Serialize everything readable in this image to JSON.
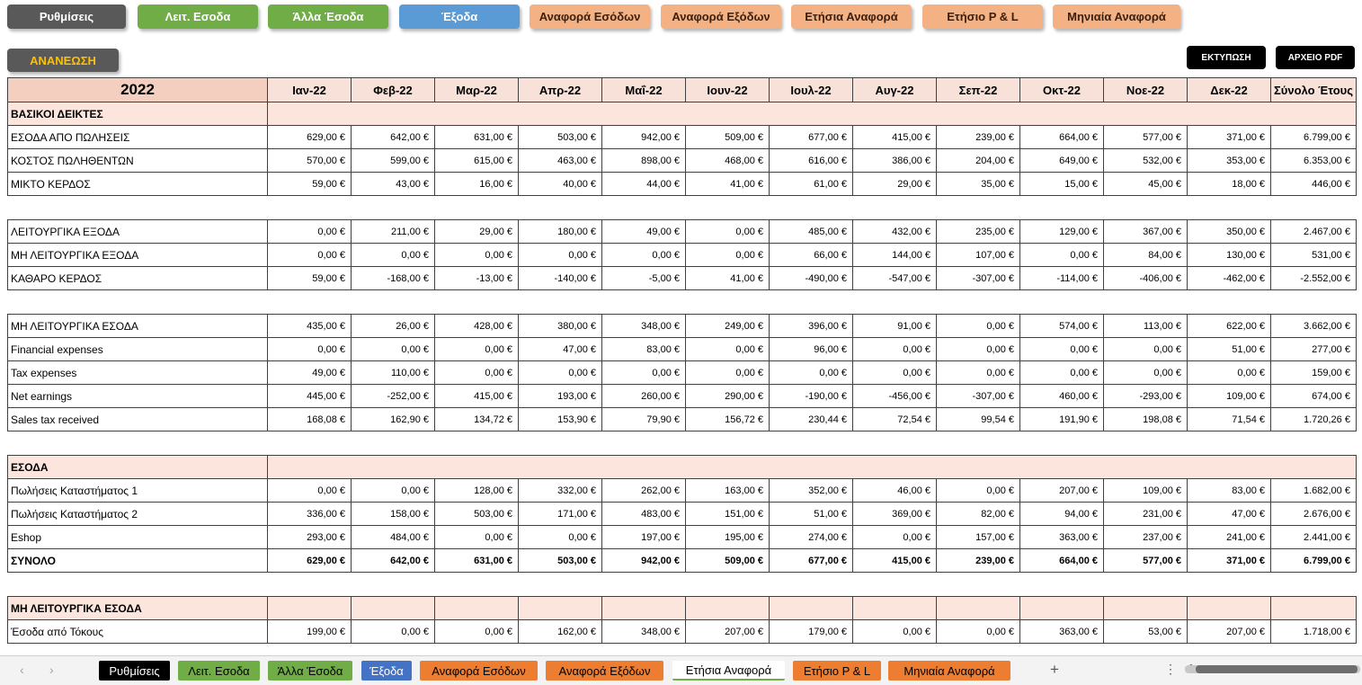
{
  "nav_buttons": [
    {
      "label": "Ρυθμίσεις",
      "color": "#595959"
    },
    {
      "label": "Λειτ. Εσοδα",
      "color": "#70ad47"
    },
    {
      "label": "Άλλα Έσοδα",
      "color": "#70ad47"
    },
    {
      "label": "Έξοδα",
      "color": "#5b9bd5"
    },
    {
      "label": "Αναφορά Εσόδων",
      "color": "#f4b183"
    },
    {
      "label": "Αναφορά Εξόδων",
      "color": "#f4b183"
    },
    {
      "label": "Ετήσια Αναφορά",
      "color": "#f4b183"
    },
    {
      "label": "Ετήσιο P & L",
      "color": "#f4b183"
    },
    {
      "label": "Μηνιαία Αναφορά",
      "color": "#f4b183"
    }
  ],
  "refresh_label": "ΑΝΑΝΕΩΣΗ",
  "print_label": "ΕΚΤΥΠΩΣΗ",
  "pdf_label": "ΑΡΧΕΙΟ PDF",
  "table": {
    "year": "2022",
    "months": [
      "Ιαν-22",
      "Φεβ-22",
      "Μαρ-22",
      "Απρ-22",
      "Μαΐ-22",
      "Ιουν-22",
      "Ιουλ-22",
      "Αυγ-22",
      "Σεπ-22",
      "Οκτ-22",
      "Νοε-22",
      "Δεκ-22"
    ],
    "total_header": "Σύνολο Έτους",
    "r_basic": {
      "label": "ΒΑΣΙΚΟΙ ΔΕΙΚΤΕΣ"
    },
    "r_sales": {
      "label": "ΕΣΟΔΑ ΑΠΟ ΠΩΛΗΣΕΙΣ",
      "values": [
        "629,00 €",
        "642,00 €",
        "631,00 €",
        "503,00 €",
        "942,00 €",
        "509,00 €",
        "677,00 €",
        "415,00 €",
        "239,00 €",
        "664,00 €",
        "577,00 €",
        "371,00 €",
        "6.799,00 €"
      ]
    },
    "r_cogs": {
      "label": "ΚΟΣΤΟΣ ΠΩΛΗΘΕΝΤΩΝ",
      "values": [
        "570,00 €",
        "599,00 €",
        "615,00 €",
        "463,00 €",
        "898,00 €",
        "468,00 €",
        "616,00 €",
        "386,00 €",
        "204,00 €",
        "649,00 €",
        "532,00 €",
        "353,00 €",
        "6.353,00 €"
      ]
    },
    "r_gross": {
      "label": "ΜΙΚΤΟ ΚΕΡΔΟΣ",
      "values": [
        "59,00 €",
        "43,00 €",
        "16,00 €",
        "40,00 €",
        "44,00 €",
        "41,00 €",
        "61,00 €",
        "29,00 €",
        "35,00 €",
        "15,00 €",
        "45,00 €",
        "18,00 €",
        "446,00 €"
      ]
    },
    "r_opex": {
      "label": "ΛΕΙΤΟΥΡΓΙΚΑ ΕΞΟΔΑ",
      "values": [
        "0,00 €",
        "211,00 €",
        "29,00 €",
        "180,00 €",
        "49,00 €",
        "0,00 €",
        "485,00 €",
        "432,00 €",
        "235,00 €",
        "129,00 €",
        "367,00 €",
        "350,00 €",
        "2.467,00 €"
      ]
    },
    "r_nonopex": {
      "label": "ΜΗ ΛΕΙΤΟΥΡΓΙΚΑ ΕΞΟΔΑ",
      "values": [
        "0,00 €",
        "0,00 €",
        "0,00 €",
        "0,00 €",
        "0,00 €",
        "0,00 €",
        "66,00 €",
        "144,00 €",
        "107,00 €",
        "0,00 €",
        "84,00 €",
        "130,00 €",
        "531,00 €"
      ]
    },
    "r_net": {
      "label": "ΚΑΘΑΡΟ ΚΕΡΔΟΣ",
      "values": [
        "59,00 €",
        "-168,00 €",
        "-13,00 €",
        "-140,00 €",
        "-5,00 €",
        "41,00 €",
        "-490,00 €",
        "-547,00 €",
        "-307,00 €",
        "-114,00 €",
        "-406,00 €",
        "-462,00 €",
        "-2.552,00 €"
      ]
    },
    "r_noninc": {
      "label": "ΜΗ ΛΕΙΤΟΥΡΓΙΚΑ ΕΣΟΔΑ",
      "values": [
        "435,00 €",
        "26,00 €",
        "428,00 €",
        "380,00 €",
        "348,00 €",
        "249,00 €",
        "396,00 €",
        "91,00 €",
        "0,00 €",
        "574,00 €",
        "113,00 €",
        "622,00 €",
        "3.662,00 €"
      ]
    },
    "r_fin": {
      "label": "Financial expenses",
      "values": [
        "0,00 €",
        "0,00 €",
        "0,00 €",
        "47,00 €",
        "83,00 €",
        "0,00 €",
        "96,00 €",
        "0,00 €",
        "0,00 €",
        "0,00 €",
        "0,00 €",
        "51,00 €",
        "277,00 €"
      ]
    },
    "r_tax": {
      "label": "Tax expenses",
      "values": [
        "49,00 €",
        "110,00 €",
        "0,00 €",
        "0,00 €",
        "0,00 €",
        "0,00 €",
        "0,00 €",
        "0,00 €",
        "0,00 €",
        "0,00 €",
        "0,00 €",
        "0,00 €",
        "159,00 €"
      ]
    },
    "r_netearn": {
      "label": "Net earnings",
      "values": [
        "445,00 €",
        "-252,00 €",
        "415,00 €",
        "193,00 €",
        "260,00 €",
        "290,00 €",
        "-190,00 €",
        "-456,00 €",
        "-307,00 €",
        "460,00 €",
        "-293,00 €",
        "109,00 €",
        "674,00 €"
      ]
    },
    "r_salestax": {
      "label": "Sales tax received",
      "values": [
        "168,08 €",
        "162,90 €",
        "134,72 €",
        "153,90 €",
        "79,90 €",
        "156,72 €",
        "230,44 €",
        "72,54 €",
        "99,54 €",
        "191,90 €",
        "198,08 €",
        "71,54 €",
        "1.720,26 €"
      ]
    },
    "r_income": {
      "label": "ΕΣΟΔΑ"
    },
    "r_store1": {
      "label": "Πωλήσεις Καταστήματος 1",
      "values": [
        "0,00 €",
        "0,00 €",
        "128,00 €",
        "332,00 €",
        "262,00 €",
        "163,00 €",
        "352,00 €",
        "46,00 €",
        "0,00 €",
        "207,00 €",
        "109,00 €",
        "83,00 €",
        "1.682,00 €"
      ]
    },
    "r_store2": {
      "label": "Πωλήσεις Καταστήματος 2",
      "values": [
        "336,00 €",
        "158,00 €",
        "503,00 €",
        "171,00 €",
        "483,00 €",
        "151,00 €",
        "51,00 €",
        "369,00 €",
        "82,00 €",
        "94,00 €",
        "231,00 €",
        "47,00 €",
        "2.676,00 €"
      ]
    },
    "r_eshop": {
      "label": "Eshop",
      "values": [
        "293,00 €",
        "484,00 €",
        "0,00 €",
        "0,00 €",
        "197,00 €",
        "195,00 €",
        "274,00 €",
        "0,00 €",
        "157,00 €",
        "363,00 €",
        "237,00 €",
        "241,00 €",
        "2.441,00 €"
      ]
    },
    "r_total": {
      "label": "ΣΥΝΟΛΟ",
      "values": [
        "629,00 €",
        "642,00 €",
        "631,00 €",
        "503,00 €",
        "942,00 €",
        "509,00 €",
        "677,00 €",
        "415,00 €",
        "239,00 €",
        "664,00 €",
        "577,00 €",
        "371,00 €",
        "6.799,00 €"
      ]
    },
    "r_nonop_sec": {
      "label": "ΜΗ ΛΕΙΤΟΥΡΓΙΚΑ ΕΣΟΔΑ"
    },
    "r_interest": {
      "label": "Έσοδα από Τόκους",
      "values": [
        "199,00 €",
        "0,00 €",
        "0,00 €",
        "162,00 €",
        "348,00 €",
        "207,00 €",
        "179,00 €",
        "0,00 €",
        "0,00 €",
        "363,00 €",
        "53,00 €",
        "207,00 €",
        "1.718,00 €"
      ]
    }
  },
  "sheet_tabs": [
    {
      "label": "Ρυθμίσεις",
      "color": "#000000"
    },
    {
      "label": "Λειτ. Εσοδα",
      "color": "#70ad47"
    },
    {
      "label": "Άλλα Έσοδα",
      "color": "#70ad47"
    },
    {
      "label": "Έξοδα",
      "color": "#4472c4"
    },
    {
      "label": "Αναφορά Εσόδων",
      "color": "#ed7d31"
    },
    {
      "label": "Αναφορά Εξόδων",
      "color": "#ed7d31"
    },
    {
      "label": "Ετήσια Αναφορά",
      "color": "#ffffff",
      "active": true
    },
    {
      "label": "Ετήσιο P & L",
      "color": "#ed7d31"
    },
    {
      "label": "Μηνιαία Αναφορά",
      "color": "#ed7d31"
    }
  ],
  "add_sheet_symbol": "+",
  "more_symbol": "⋮"
}
